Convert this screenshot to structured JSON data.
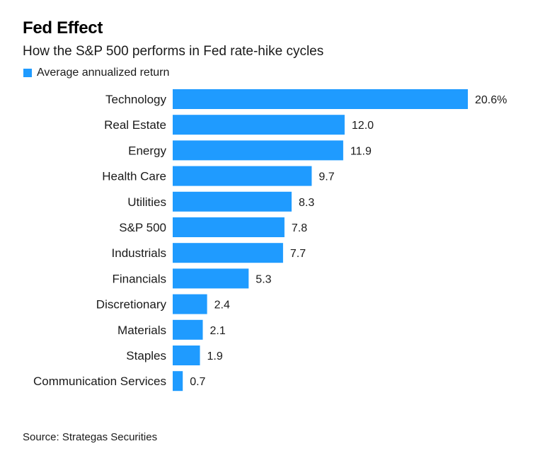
{
  "header": {
    "title": "Fed Effect",
    "subtitle": "How the S&P 500 performs in Fed rate-hike cycles"
  },
  "legend": {
    "label": "Average annualized return"
  },
  "source": "Source: Strategas Securities",
  "colors": {
    "bar": "#1f9bff"
  },
  "chart_data": {
    "type": "bar",
    "orientation": "horizontal",
    "title": "Fed Effect",
    "subtitle": "How the S&P 500 performs in Fed rate-hike cycles",
    "xlabel": "",
    "ylabel": "",
    "xlim": [
      0,
      20.6
    ],
    "grid": false,
    "legend_position": "top-left",
    "categories": [
      "Technology",
      "Real Estate",
      "Energy",
      "Health Care",
      "Utilities",
      "S&P 500",
      "Industrials",
      "Financials",
      "Discretionary",
      "Materials",
      "Staples",
      "Communication Services"
    ],
    "series": [
      {
        "name": "Average annualized return",
        "values": [
          20.6,
          12.0,
          11.9,
          9.7,
          8.3,
          7.8,
          7.7,
          5.3,
          2.4,
          2.1,
          1.9,
          0.7
        ]
      }
    ],
    "value_labels": [
      "20.6%",
      "12.0",
      "11.9",
      "9.7",
      "8.3",
      "7.8",
      "7.7",
      "5.3",
      "2.4",
      "2.1",
      "1.9",
      "0.7"
    ]
  }
}
